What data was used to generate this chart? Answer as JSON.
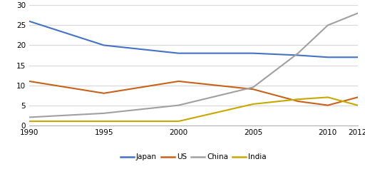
{
  "years": [
    1990,
    1995,
    2000,
    2005,
    2008,
    2010,
    2012
  ],
  "japan": [
    26,
    20,
    18,
    18,
    17.5,
    17,
    17
  ],
  "us": [
    11,
    8,
    11,
    9,
    6,
    5,
    7
  ],
  "china": [
    2,
    3,
    5,
    9.5,
    18,
    25,
    28
  ],
  "india": [
    1,
    1,
    1,
    5.3,
    6.5,
    7,
    5
  ],
  "colors": {
    "japan": "#4472C4",
    "us": "#c8621a",
    "china": "#a0a0a0",
    "india": "#c8a800"
  },
  "legend_labels": [
    "Japan",
    "US",
    "China",
    "India"
  ],
  "xlim": [
    1990,
    2012
  ],
  "ylim": [
    0,
    30
  ],
  "yticks": [
    0,
    5,
    10,
    15,
    20,
    25,
    30
  ],
  "xticks": [
    1990,
    1995,
    2000,
    2005,
    2010,
    2012
  ],
  "background_color": "#ffffff",
  "grid_color": "#d8d8d8",
  "linewidth": 1.5
}
